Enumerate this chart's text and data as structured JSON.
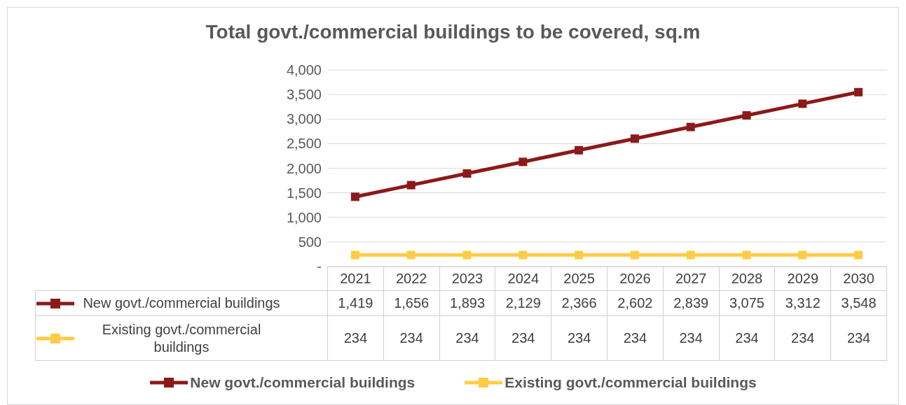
{
  "chart_data": {
    "type": "line",
    "title": "Total govt./commercial buildings to be covered, sq.m",
    "categories": [
      "2021",
      "2022",
      "2023",
      "2024",
      "2025",
      "2026",
      "2027",
      "2028",
      "2029",
      "2030"
    ],
    "series": [
      {
        "name": "New govt./commercial buildings",
        "color": "#8b1a1a",
        "values": [
          1419,
          1656,
          1893,
          2129,
          2366,
          2602,
          2839,
          3075,
          3312,
          3548
        ],
        "value_labels": [
          "1,419",
          "1,656",
          "1,893",
          "2,129",
          "2,366",
          "2,602",
          "2,839",
          "3,075",
          "3,312",
          "3,548"
        ]
      },
      {
        "name": "Existing govt./commercial buildings",
        "color": "#ffcc44",
        "values": [
          234,
          234,
          234,
          234,
          234,
          234,
          234,
          234,
          234,
          234
        ],
        "value_labels": [
          "234",
          "234",
          "234",
          "234",
          "234",
          "234",
          "234",
          "234",
          "234",
          "234"
        ]
      }
    ],
    "ylim": [
      0,
      4000
    ],
    "yticks": [
      {
        "value": 0,
        "label": "-"
      },
      {
        "value": 500,
        "label": "500"
      },
      {
        "value": 1000,
        "label": "1,000"
      },
      {
        "value": 1500,
        "label": "1,500"
      },
      {
        "value": 2000,
        "label": "2,000"
      },
      {
        "value": 2500,
        "label": "2,500"
      },
      {
        "value": 3000,
        "label": "3,000"
      },
      {
        "value": 3500,
        "label": "3,500"
      },
      {
        "value": 4000,
        "label": "4,000"
      }
    ],
    "grid": "y",
    "legend": "bottom",
    "marker": "square",
    "line_style": "solid"
  }
}
